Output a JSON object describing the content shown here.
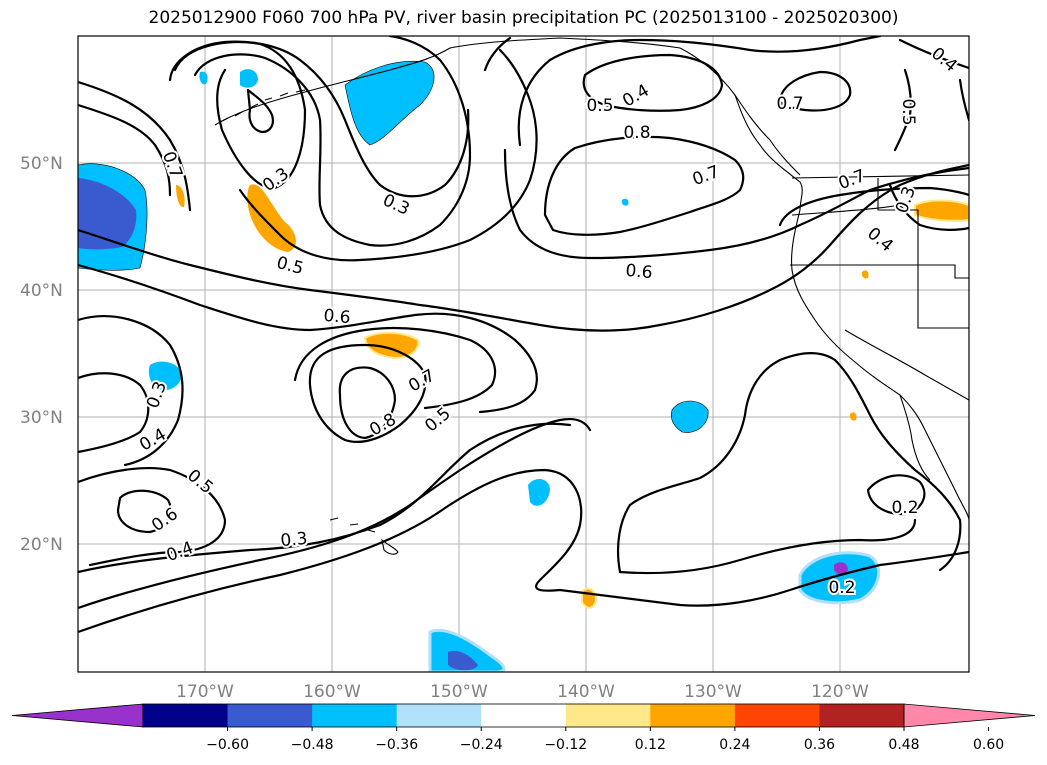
{
  "title": "2025012900 F060 700 hPa PV, river basin precipitation PC (2025013100 - 2025020300)",
  "latitude_labels": [
    "50°N",
    "40°N",
    "30°N",
    "20°N"
  ],
  "longitude_labels": [
    "170°W",
    "160°W",
    "150°W",
    "140°W",
    "130°W",
    "120°W"
  ],
  "colorbar": {
    "ticks": [
      "−0.60",
      "−0.48",
      "−0.36",
      "−0.24",
      "−0.12",
      "0.12",
      "0.24",
      "0.36",
      "0.48",
      "0.60"
    ],
    "colors": [
      "#9932cc",
      "#00008b",
      "#3a5bd0",
      "#00bfff",
      "#b0e0fa",
      "#ffffff",
      "#ffe88a",
      "#ffa500",
      "#ff4500",
      "#b22222",
      "#ff88aa"
    ]
  },
  "contour_labels": [
    {
      "text": "0.7"
    },
    {
      "text": "0.3"
    },
    {
      "text": "0.3"
    },
    {
      "text": "0.5"
    },
    {
      "text": "0.6"
    },
    {
      "text": "0.7"
    },
    {
      "text": "0.8"
    },
    {
      "text": "0.5"
    },
    {
      "text": "0.3"
    },
    {
      "text": "0.4"
    },
    {
      "text": "0.5"
    },
    {
      "text": "0.6"
    },
    {
      "text": "0.4"
    },
    {
      "text": "0.3"
    },
    {
      "text": "0.5"
    },
    {
      "text": "0.4"
    },
    {
      "text": "0.8"
    },
    {
      "text": "0.7"
    },
    {
      "text": "0.6"
    },
    {
      "text": "0.7"
    },
    {
      "text": "0.7"
    },
    {
      "text": "0.4"
    },
    {
      "text": "0.5"
    },
    {
      "text": "0.4"
    },
    {
      "text": "0.3"
    },
    {
      "text": "0.2"
    },
    {
      "text": "0.2"
    }
  ]
}
